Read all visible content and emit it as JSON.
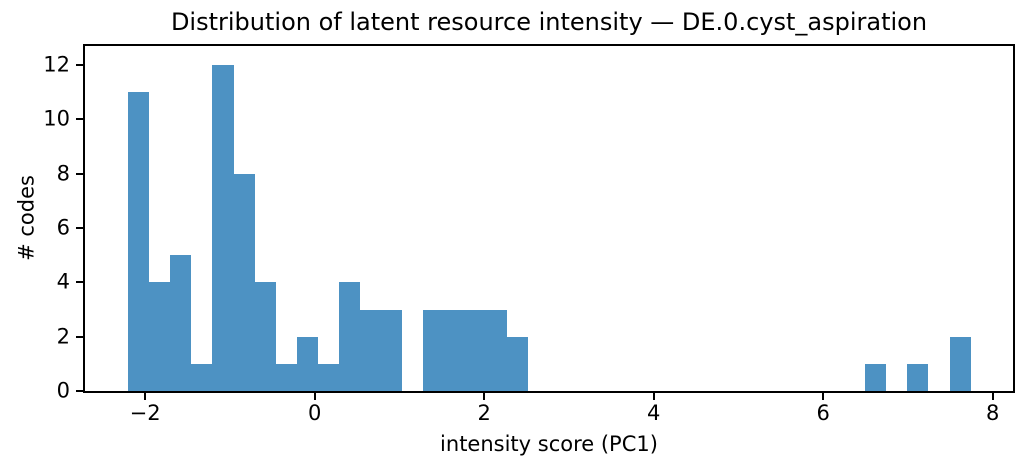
{
  "chart_data": {
    "type": "bar",
    "subtype": "histogram",
    "title": "Distribution of latent resource intensity — DE.0.cyst_aspiration",
    "xlabel": "intensity score (PC1)",
    "ylabel": "# codes",
    "bins": {
      "start": -2.2,
      "width": 0.2485,
      "counts": [
        11,
        4,
        5,
        1,
        12,
        8,
        4,
        1,
        2,
        1,
        4,
        3,
        3,
        0,
        3,
        3,
        3,
        3,
        2,
        0,
        0,
        0,
        0,
        0,
        0,
        0,
        0,
        0,
        0,
        0,
        0,
        0,
        0,
        0,
        0,
        1,
        0,
        1,
        0,
        2
      ]
    },
    "xlim": [
      -2.71,
      8.24
    ],
    "ylim": [
      0,
      12.7
    ],
    "xticks": {
      "values": [
        -2,
        0,
        2,
        4,
        6,
        8
      ],
      "labels": [
        "−2",
        "0",
        "2",
        "4",
        "6",
        "8"
      ]
    },
    "yticks": {
      "values": [
        0,
        2,
        4,
        6,
        8,
        10,
        12
      ],
      "labels": [
        "0",
        "2",
        "4",
        "6",
        "8",
        "10",
        "12"
      ]
    },
    "grid": false,
    "legend": false,
    "bar_color": "#4D92C3",
    "axis_color": "#000000",
    "text_color": "#000000",
    "background_color": "#ffffff"
  }
}
